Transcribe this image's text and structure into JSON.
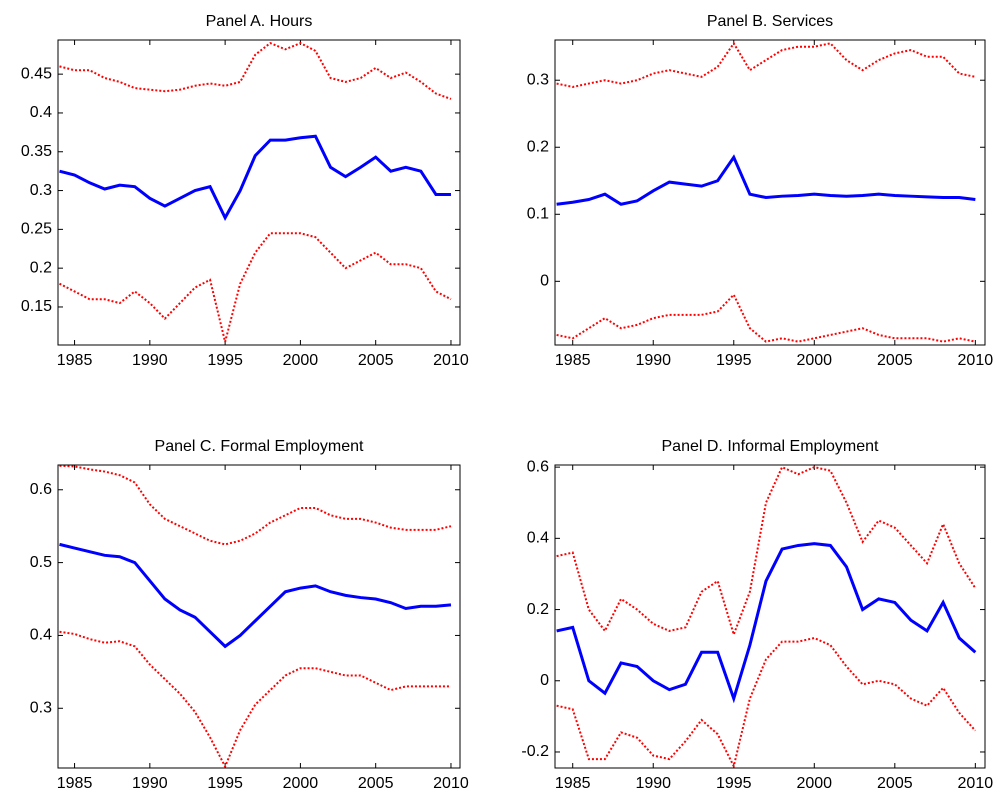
{
  "chart_data": [
    {
      "type": "line",
      "title": "Panel A. Hours",
      "x": [
        1984,
        1985,
        1986,
        1987,
        1988,
        1989,
        1990,
        1991,
        1992,
        1993,
        1994,
        1995,
        1996,
        1997,
        1998,
        1999,
        2000,
        2001,
        2002,
        2003,
        2004,
        2005,
        2006,
        2007,
        2008,
        2009,
        2010
      ],
      "xlim": [
        1983.9,
        2010.6
      ],
      "xticks": [
        1985,
        1990,
        1995,
        2000,
        2005,
        2010
      ],
      "ylim": [
        0.101,
        0.494
      ],
      "yticks": [
        0.15,
        0.2,
        0.25,
        0.3,
        0.35,
        0.4,
        0.45
      ],
      "series": [
        {
          "color": "#0000ff",
          "dash": "solid",
          "values": [
            0.325,
            0.32,
            0.31,
            0.302,
            0.307,
            0.305,
            0.29,
            0.28,
            0.29,
            0.3,
            0.305,
            0.265,
            0.3,
            0.345,
            0.365,
            0.365,
            0.368,
            0.37,
            0.33,
            0.318,
            0.33,
            0.343,
            0.325,
            0.33,
            0.325,
            0.295,
            0.295
          ]
        },
        {
          "color": "#ff0000",
          "dash": "dotted",
          "values": [
            0.46,
            0.455,
            0.455,
            0.445,
            0.44,
            0.432,
            0.43,
            0.428,
            0.43,
            0.435,
            0.438,
            0.435,
            0.44,
            0.475,
            0.49,
            0.482,
            0.49,
            0.48,
            0.445,
            0.44,
            0.445,
            0.458,
            0.445,
            0.452,
            0.44,
            0.425,
            0.418
          ]
        },
        {
          "color": "#ff0000",
          "dash": "dotted",
          "values": [
            0.18,
            0.17,
            0.16,
            0.16,
            0.155,
            0.17,
            0.155,
            0.135,
            0.155,
            0.175,
            0.185,
            0.105,
            0.18,
            0.22,
            0.245,
            0.245,
            0.245,
            0.24,
            0.22,
            0.2,
            0.21,
            0.22,
            0.205,
            0.205,
            0.2,
            0.17,
            0.16
          ]
        }
      ]
    },
    {
      "type": "line",
      "title": "Panel B. Services",
      "x": [
        1984,
        1985,
        1986,
        1987,
        1988,
        1989,
        1990,
        1991,
        1992,
        1993,
        1994,
        1995,
        1996,
        1997,
        1998,
        1999,
        2000,
        2001,
        2002,
        2003,
        2004,
        2005,
        2006,
        2007,
        2008,
        2009,
        2010
      ],
      "xlim": [
        1983.9,
        2010.6
      ],
      "xticks": [
        1985,
        1990,
        1995,
        2000,
        2005,
        2010
      ],
      "ylim": [
        -0.095,
        0.36
      ],
      "yticks": [
        0,
        0.1,
        0.2,
        0.3
      ],
      "series": [
        {
          "color": "#0000ff",
          "dash": "solid",
          "values": [
            0.115,
            0.118,
            0.122,
            0.13,
            0.115,
            0.12,
            0.135,
            0.148,
            0.145,
            0.142,
            0.15,
            0.185,
            0.13,
            0.125,
            0.127,
            0.128,
            0.13,
            0.128,
            0.127,
            0.128,
            0.13,
            0.128,
            0.127,
            0.126,
            0.125,
            0.125,
            0.122
          ]
        },
        {
          "color": "#ff0000",
          "dash": "dotted",
          "values": [
            0.295,
            0.29,
            0.295,
            0.3,
            0.295,
            0.3,
            0.31,
            0.315,
            0.31,
            0.305,
            0.32,
            0.355,
            0.315,
            0.33,
            0.345,
            0.35,
            0.35,
            0.355,
            0.33,
            0.315,
            0.33,
            0.34,
            0.345,
            0.335,
            0.335,
            0.31,
            0.305
          ]
        },
        {
          "color": "#ff0000",
          "dash": "dotted",
          "values": [
            -0.08,
            -0.085,
            -0.07,
            -0.055,
            -0.07,
            -0.065,
            -0.055,
            -0.05,
            -0.05,
            -0.05,
            -0.045,
            -0.02,
            -0.07,
            -0.09,
            -0.085,
            -0.09,
            -0.085,
            -0.08,
            -0.075,
            -0.07,
            -0.08,
            -0.085,
            -0.085,
            -0.085,
            -0.09,
            -0.085,
            -0.09
          ]
        }
      ]
    },
    {
      "type": "line",
      "title": "Panel C. Formal Employment",
      "x": [
        1984,
        1985,
        1986,
        1987,
        1988,
        1989,
        1990,
        1991,
        1992,
        1993,
        1994,
        1995,
        1996,
        1997,
        1998,
        1999,
        2000,
        2001,
        2002,
        2003,
        2004,
        2005,
        2006,
        2007,
        2008,
        2009,
        2010
      ],
      "xlim": [
        1983.9,
        2010.6
      ],
      "xticks": [
        1985,
        1990,
        1995,
        2000,
        2005,
        2010
      ],
      "ylim": [
        0.218,
        0.634
      ],
      "yticks": [
        0.3,
        0.4,
        0.5,
        0.6
      ],
      "series": [
        {
          "color": "#0000ff",
          "dash": "solid",
          "values": [
            0.525,
            0.52,
            0.515,
            0.51,
            0.508,
            0.5,
            0.475,
            0.45,
            0.435,
            0.425,
            0.405,
            0.385,
            0.4,
            0.42,
            0.44,
            0.46,
            0.465,
            0.468,
            0.46,
            0.455,
            0.452,
            0.45,
            0.445,
            0.437,
            0.44,
            0.44,
            0.442
          ]
        },
        {
          "color": "#ff0000",
          "dash": "dotted",
          "values": [
            0.633,
            0.632,
            0.628,
            0.625,
            0.62,
            0.61,
            0.58,
            0.56,
            0.55,
            0.54,
            0.53,
            0.525,
            0.53,
            0.54,
            0.555,
            0.565,
            0.575,
            0.575,
            0.565,
            0.56,
            0.56,
            0.555,
            0.548,
            0.545,
            0.545,
            0.545,
            0.55
          ]
        },
        {
          "color": "#ff0000",
          "dash": "dotted",
          "values": [
            0.405,
            0.402,
            0.395,
            0.39,
            0.392,
            0.385,
            0.36,
            0.34,
            0.32,
            0.295,
            0.26,
            0.22,
            0.27,
            0.305,
            0.325,
            0.345,
            0.355,
            0.355,
            0.35,
            0.345,
            0.345,
            0.335,
            0.325,
            0.33,
            0.33,
            0.33,
            0.33
          ]
        }
      ]
    },
    {
      "type": "line",
      "title": "Panel D. Informal Employment",
      "x": [
        1984,
        1985,
        1986,
        1987,
        1988,
        1989,
        1990,
        1991,
        1992,
        1993,
        1994,
        1995,
        1996,
        1997,
        1998,
        1999,
        2000,
        2001,
        2002,
        2003,
        2004,
        2005,
        2006,
        2007,
        2008,
        2009,
        2010
      ],
      "xlim": [
        1983.9,
        2010.6
      ],
      "xticks": [
        1985,
        1990,
        1995,
        2000,
        2005,
        2010
      ],
      "ylim": [
        -0.245,
        0.606
      ],
      "yticks": [
        -0.2,
        0,
        0.2,
        0.4,
        0.6
      ],
      "series": [
        {
          "color": "#0000ff",
          "dash": "solid",
          "values": [
            0.14,
            0.15,
            0.0,
            -0.035,
            0.05,
            0.04,
            0.0,
            -0.025,
            -0.01,
            0.08,
            0.08,
            -0.05,
            0.1,
            0.28,
            0.37,
            0.38,
            0.385,
            0.38,
            0.32,
            0.2,
            0.23,
            0.22,
            0.17,
            0.14,
            0.22,
            0.12,
            0.08
          ]
        },
        {
          "color": "#ff0000",
          "dash": "dotted",
          "values": [
            0.35,
            0.36,
            0.2,
            0.14,
            0.23,
            0.2,
            0.16,
            0.14,
            0.15,
            0.25,
            0.28,
            0.13,
            0.25,
            0.5,
            0.6,
            0.58,
            0.6,
            0.59,
            0.5,
            0.39,
            0.45,
            0.43,
            0.38,
            0.33,
            0.44,
            0.33,
            0.26
          ]
        },
        {
          "color": "#ff0000",
          "dash": "dotted",
          "values": [
            -0.07,
            -0.08,
            -0.22,
            -0.22,
            -0.145,
            -0.16,
            -0.21,
            -0.22,
            -0.17,
            -0.11,
            -0.15,
            -0.24,
            -0.05,
            0.06,
            0.11,
            0.11,
            0.12,
            0.1,
            0.04,
            -0.01,
            0.0,
            -0.01,
            -0.05,
            -0.07,
            -0.02,
            -0.09,
            -0.14
          ]
        }
      ]
    }
  ]
}
